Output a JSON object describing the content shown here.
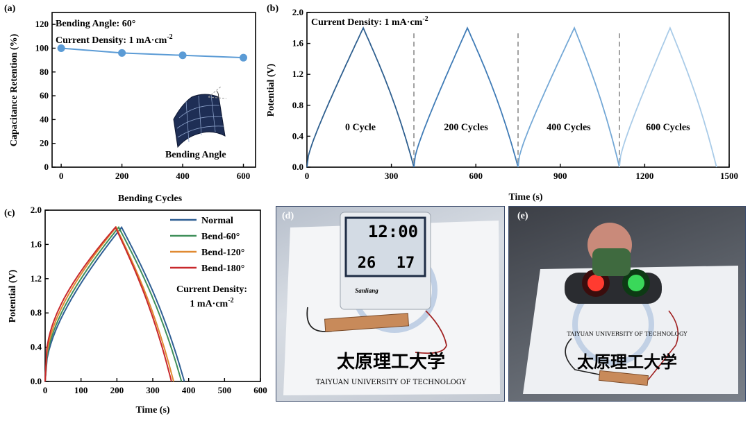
{
  "chart_data": [
    {
      "panel": "(a)",
      "type": "line",
      "xlabel": "Bending Cycles",
      "ylabel": "Capacitance Retention (%)",
      "xlim": [
        -30,
        640
      ],
      "ylim": [
        0,
        130
      ],
      "xticks": [
        0,
        200,
        400,
        600
      ],
      "yticks": [
        0,
        20,
        40,
        60,
        80,
        100,
        120
      ],
      "x": [
        0,
        200,
        400,
        600
      ],
      "values": [
        100,
        96,
        94,
        92
      ],
      "color": "#5b9bd5",
      "annotations": [
        "Bending Angle: 60°",
        "Current Density: 1 mA·cm",
        "-2",
        "Bending Angle"
      ]
    },
    {
      "panel": "(b)",
      "type": "line",
      "xlabel": "Time (s)",
      "ylabel": "Potential (V)",
      "xlim": [
        0,
        1500
      ],
      "ylim": [
        0,
        2.0
      ],
      "xticks": [
        0,
        300,
        600,
        900,
        1200,
        1500
      ],
      "yticks": [
        0.0,
        0.4,
        0.8,
        1.2,
        1.6,
        2.0
      ],
      "segments": [
        {
          "label": "0 Cycle",
          "start": 0,
          "peak": 200,
          "end": 380,
          "color": "#2e5f8f"
        },
        {
          "label": "200 Cycles",
          "start": 380,
          "peak": 570,
          "end": 750,
          "color": "#3f7bb6"
        },
        {
          "label": "400 Cycles",
          "start": 750,
          "peak": 950,
          "end": 1110,
          "color": "#74a8d6"
        },
        {
          "label": "600 Cycles",
          "start": 1110,
          "peak": 1290,
          "end": 1455,
          "color": "#a9cbe8"
        }
      ],
      "vmax": 1.8,
      "separators": [
        380,
        750,
        1110
      ],
      "annotations": [
        "Current Density: 1 mA·cm",
        "-2"
      ]
    },
    {
      "panel": "(c)",
      "type": "line",
      "xlabel": "Time (s)",
      "ylabel": "Potential (V)",
      "xlim": [
        0,
        600
      ],
      "ylim": [
        0,
        2.0
      ],
      "xticks": [
        0,
        100,
        200,
        300,
        400,
        500,
        600
      ],
      "yticks": [
        0.0,
        0.4,
        0.8,
        1.2,
        1.6,
        2.0
      ],
      "vmax": 1.8,
      "series": [
        {
          "name": "Normal",
          "color": "#2f5f94",
          "peak": 213,
          "end": 388
        },
        {
          "name": "Bend-60°",
          "color": "#3f8f5a",
          "peak": 205,
          "end": 380
        },
        {
          "name": "Bend-120°",
          "color": "#e08a32",
          "peak": 198,
          "end": 358
        },
        {
          "name": "Bend-180°",
          "color": "#c8282c",
          "peak": 196,
          "end": 352
        }
      ],
      "annotations": [
        "Current Density:",
        "1 mA·cm",
        "-2"
      ]
    }
  ],
  "photos": {
    "d": {
      "label": "(d)",
      "display_time": "12:00",
      "display_humidity": "26",
      "display_temp": "17",
      "brand": "Sanliang",
      "logo_text": "太原理工大学",
      "university": "TAIYUAN UNIVERSITY OF TECHNOLOGY"
    },
    "e": {
      "label": "(e)",
      "logo_text": "太原理工大学",
      "university": "TAIYUAN UNIVERSITY OF TECHNOLOGY"
    }
  }
}
